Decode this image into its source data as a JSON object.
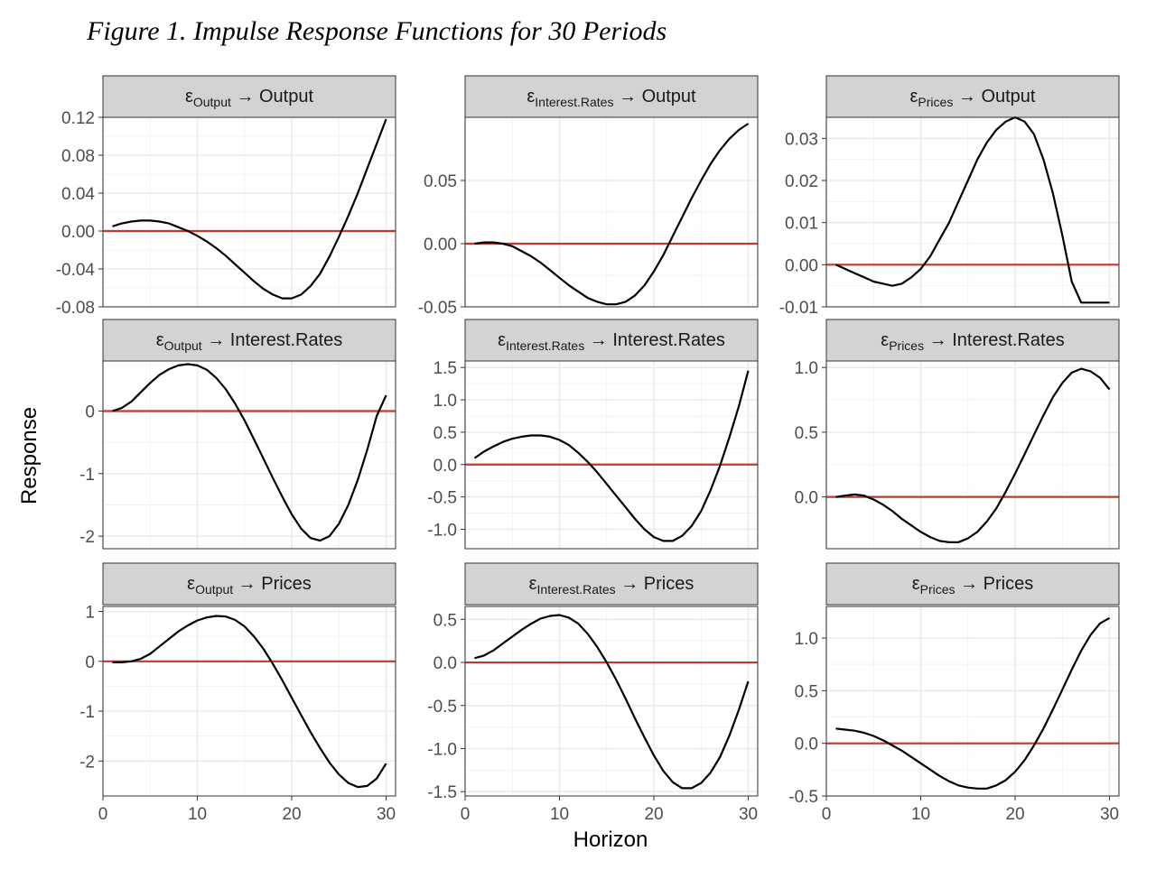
{
  "figure_title": "Figure 1. Impulse Response Functions for 30 Periods",
  "colors": {
    "line": "#000000",
    "zero_line": "#c0392b",
    "strip_fill": "#d3d3d3",
    "grid": "#ebebeb"
  },
  "chart_data": [
    {
      "type": "line",
      "shock": "Output",
      "response": "Output",
      "x": [
        1,
        2,
        3,
        4,
        5,
        6,
        7,
        8,
        9,
        10,
        11,
        12,
        13,
        14,
        15,
        16,
        17,
        18,
        19,
        20,
        21,
        22,
        23,
        24,
        25,
        26,
        27,
        28,
        29,
        30
      ],
      "y": [
        0.005,
        0.008,
        0.01,
        0.011,
        0.011,
        0.01,
        0.008,
        0.004,
        0.0,
        -0.005,
        -0.011,
        -0.018,
        -0.026,
        -0.035,
        -0.044,
        -0.053,
        -0.061,
        -0.067,
        -0.071,
        -0.071,
        -0.067,
        -0.058,
        -0.045,
        -0.027,
        -0.006,
        0.016,
        0.04,
        0.066,
        0.092,
        0.118
      ],
      "ylim": [
        -0.08,
        0.12
      ],
      "yticks": [
        -0.08,
        -0.04,
        0.0,
        0.04,
        0.08,
        0.12
      ],
      "ytick_labels": [
        "-0.08",
        "-0.04",
        "0.00",
        "0.04",
        "0.08",
        "0.12"
      ]
    },
    {
      "type": "line",
      "shock": "Interest.Rates",
      "response": "Output",
      "x": [
        1,
        2,
        3,
        4,
        5,
        6,
        7,
        8,
        9,
        10,
        11,
        12,
        13,
        14,
        15,
        16,
        17,
        18,
        19,
        20,
        21,
        22,
        23,
        24,
        25,
        26,
        27,
        28,
        29,
        30
      ],
      "y": [
        0.0,
        0.001,
        0.001,
        0.0,
        -0.002,
        -0.006,
        -0.01,
        -0.015,
        -0.021,
        -0.027,
        -0.033,
        -0.038,
        -0.043,
        -0.046,
        -0.048,
        -0.048,
        -0.046,
        -0.041,
        -0.033,
        -0.022,
        -0.009,
        0.006,
        0.021,
        0.036,
        0.05,
        0.063,
        0.074,
        0.083,
        0.09,
        0.095
      ],
      "ylim": [
        -0.05,
        0.1
      ],
      "yticks": [
        -0.05,
        0.0,
        0.05
      ],
      "ytick_labels": [
        "-0.05",
        "0.00",
        "0.05"
      ]
    },
    {
      "type": "line",
      "shock": "Prices",
      "response": "Output",
      "x": [
        1,
        2,
        3,
        4,
        5,
        6,
        7,
        8,
        9,
        10,
        11,
        12,
        13,
        14,
        15,
        16,
        17,
        18,
        19,
        20,
        21,
        22,
        23,
        24,
        25,
        26,
        27,
        28,
        29,
        30
      ],
      "y": [
        0.0,
        -0.001,
        -0.002,
        -0.003,
        -0.004,
        -0.0045,
        -0.005,
        -0.0045,
        -0.003,
        -0.001,
        0.002,
        0.006,
        0.01,
        0.015,
        0.02,
        0.025,
        0.029,
        0.032,
        0.034,
        0.035,
        0.034,
        0.031,
        0.025,
        0.017,
        0.007,
        -0.004,
        -0.009,
        -0.009,
        -0.009,
        -0.009
      ],
      "ylim": [
        -0.01,
        0.035
      ],
      "yticks": [
        -0.01,
        0.0,
        0.01,
        0.02,
        0.03
      ],
      "ytick_labels": [
        "-0.01",
        "0.00",
        "0.01",
        "0.02",
        "0.03"
      ]
    },
    {
      "type": "line",
      "shock": "Output",
      "response": "Interest.Rates",
      "x": [
        1,
        2,
        3,
        4,
        5,
        6,
        7,
        8,
        9,
        10,
        11,
        12,
        13,
        14,
        15,
        16,
        17,
        18,
        19,
        20,
        21,
        22,
        23,
        24,
        25,
        26,
        27,
        28,
        29,
        30
      ],
      "y": [
        0.0,
        0.05,
        0.15,
        0.3,
        0.45,
        0.58,
        0.67,
        0.73,
        0.75,
        0.73,
        0.66,
        0.53,
        0.35,
        0.12,
        -0.15,
        -0.45,
        -0.76,
        -1.07,
        -1.37,
        -1.65,
        -1.88,
        -2.03,
        -2.07,
        -2.0,
        -1.8,
        -1.5,
        -1.1,
        -0.62,
        -0.08,
        0.25
      ],
      "ylim": [
        -2.2,
        0.8
      ],
      "yticks": [
        -2,
        -1,
        0
      ],
      "ytick_labels": [
        "-2",
        "-1",
        "0"
      ]
    },
    {
      "type": "line",
      "shock": "Interest.Rates",
      "response": "Interest.Rates",
      "x": [
        1,
        2,
        3,
        4,
        5,
        6,
        7,
        8,
        9,
        10,
        11,
        12,
        13,
        14,
        15,
        16,
        17,
        18,
        19,
        20,
        21,
        22,
        23,
        24,
        25,
        26,
        27,
        28,
        29,
        30
      ],
      "y": [
        0.1,
        0.2,
        0.28,
        0.35,
        0.4,
        0.43,
        0.45,
        0.45,
        0.43,
        0.38,
        0.3,
        0.18,
        0.04,
        -0.12,
        -0.3,
        -0.48,
        -0.66,
        -0.84,
        -1.0,
        -1.12,
        -1.18,
        -1.18,
        -1.1,
        -0.95,
        -0.72,
        -0.4,
        -0.02,
        0.42,
        0.9,
        1.45
      ],
      "ylim": [
        -1.3,
        1.6
      ],
      "yticks": [
        -1.0,
        -0.5,
        0.0,
        0.5,
        1.0,
        1.5
      ],
      "ytick_labels": [
        "-1.0",
        "-0.5",
        "0.0",
        "0.5",
        "1.0",
        "1.5"
      ]
    },
    {
      "type": "line",
      "shock": "Prices",
      "response": "Interest.Rates",
      "x": [
        1,
        2,
        3,
        4,
        5,
        6,
        7,
        8,
        9,
        10,
        11,
        12,
        13,
        14,
        15,
        16,
        17,
        18,
        19,
        20,
        21,
        22,
        23,
        24,
        25,
        26,
        27,
        28,
        29,
        30
      ],
      "y": [
        0.0,
        0.01,
        0.02,
        0.01,
        -0.02,
        -0.06,
        -0.11,
        -0.17,
        -0.22,
        -0.27,
        -0.31,
        -0.34,
        -0.35,
        -0.35,
        -0.32,
        -0.27,
        -0.19,
        -0.09,
        0.04,
        0.18,
        0.33,
        0.48,
        0.63,
        0.77,
        0.88,
        0.96,
        0.99,
        0.97,
        0.92,
        0.83
      ],
      "ylim": [
        -0.4,
        1.05
      ],
      "yticks": [
        0.0,
        0.5,
        1.0
      ],
      "ytick_labels": [
        "0.0",
        "0.5",
        "1.0"
      ]
    },
    {
      "type": "line",
      "shock": "Output",
      "response": "Prices",
      "x": [
        1,
        2,
        3,
        4,
        5,
        6,
        7,
        8,
        9,
        10,
        11,
        12,
        13,
        14,
        15,
        16,
        17,
        18,
        19,
        20,
        21,
        22,
        23,
        24,
        25,
        26,
        27,
        28,
        29,
        30
      ],
      "y": [
        -0.02,
        -0.02,
        0.0,
        0.05,
        0.15,
        0.3,
        0.45,
        0.6,
        0.72,
        0.82,
        0.88,
        0.91,
        0.9,
        0.83,
        0.7,
        0.5,
        0.25,
        -0.05,
        -0.38,
        -0.73,
        -1.08,
        -1.42,
        -1.74,
        -2.03,
        -2.27,
        -2.44,
        -2.52,
        -2.5,
        -2.35,
        -2.05
      ],
      "ylim": [
        -2.7,
        1.1
      ],
      "yticks": [
        -2,
        -1,
        0,
        1
      ],
      "ytick_labels": [
        "-2",
        "-1",
        "0",
        "1"
      ]
    },
    {
      "type": "line",
      "shock": "Interest.Rates",
      "response": "Prices",
      "x": [
        1,
        2,
        3,
        4,
        5,
        6,
        7,
        8,
        9,
        10,
        11,
        12,
        13,
        14,
        15,
        16,
        17,
        18,
        19,
        20,
        21,
        22,
        23,
        24,
        25,
        26,
        27,
        28,
        29,
        30
      ],
      "y": [
        0.05,
        0.08,
        0.14,
        0.22,
        0.3,
        0.38,
        0.45,
        0.51,
        0.54,
        0.55,
        0.52,
        0.45,
        0.33,
        0.18,
        0.0,
        -0.2,
        -0.42,
        -0.65,
        -0.87,
        -1.08,
        -1.26,
        -1.39,
        -1.46,
        -1.46,
        -1.4,
        -1.28,
        -1.1,
        -0.85,
        -0.55,
        -0.22
      ],
      "ylim": [
        -1.55,
        0.65
      ],
      "yticks": [
        -1.5,
        -1.0,
        -0.5,
        0.0,
        0.5
      ],
      "ytick_labels": [
        "-1.5",
        "-1.0",
        "-0.5",
        "0.0",
        "0.5"
      ]
    },
    {
      "type": "line",
      "shock": "Prices",
      "response": "Prices",
      "x": [
        1,
        2,
        3,
        4,
        5,
        6,
        7,
        8,
        9,
        10,
        11,
        12,
        13,
        14,
        15,
        16,
        17,
        18,
        19,
        20,
        21,
        22,
        23,
        24,
        25,
        26,
        27,
        28,
        29,
        30
      ],
      "y": [
        0.14,
        0.13,
        0.12,
        0.1,
        0.07,
        0.03,
        -0.02,
        -0.07,
        -0.13,
        -0.19,
        -0.25,
        -0.31,
        -0.36,
        -0.4,
        -0.42,
        -0.43,
        -0.43,
        -0.4,
        -0.35,
        -0.27,
        -0.16,
        -0.02,
        0.14,
        0.32,
        0.51,
        0.7,
        0.88,
        1.03,
        1.14,
        1.19
      ],
      "ylim": [
        -0.5,
        1.3
      ],
      "yticks": [
        -0.5,
        0.0,
        0.5,
        1.0
      ],
      "ytick_labels": [
        "-0.5",
        "0.0",
        "0.5",
        "1.0"
      ]
    }
  ],
  "axes": {
    "xlabel": "Horizon",
    "ylabel": "Response",
    "xlim": [
      0,
      31
    ],
    "xticks": [
      0,
      10,
      20,
      30
    ],
    "xtick_labels": [
      "0",
      "10",
      "20",
      "30"
    ],
    "shock_symbol": "ε",
    "arrow": "→"
  }
}
